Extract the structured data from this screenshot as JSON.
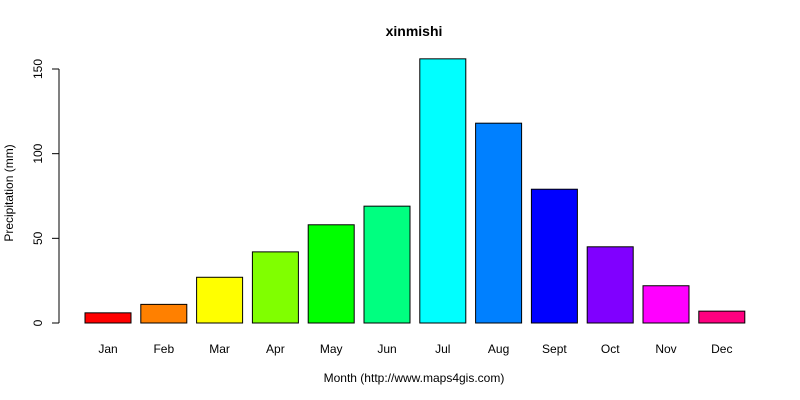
{
  "chart_data": {
    "type": "bar",
    "title": "xinmishi",
    "xlabel": "Month (http://www.maps4gis.com)",
    "ylabel": "Precipitation (mm)",
    "categories": [
      "Jan",
      "Feb",
      "Mar",
      "Apr",
      "May",
      "Jun",
      "Jul",
      "Aug",
      "Sept",
      "Oct",
      "Nov",
      "Dec"
    ],
    "values": [
      6,
      11,
      27,
      42,
      58,
      69,
      156,
      118,
      79,
      45,
      22,
      7
    ],
    "colors": [
      "#ff0000",
      "#ff8000",
      "#ffff00",
      "#80ff00",
      "#00ff00",
      "#00ff80",
      "#00ffff",
      "#0080ff",
      "#0000ff",
      "#8000ff",
      "#ff00ff",
      "#ff0080"
    ],
    "ylim": [
      0,
      160
    ],
    "yticks": [
      0,
      50,
      100,
      150
    ],
    "grid": false,
    "legend": "none"
  }
}
